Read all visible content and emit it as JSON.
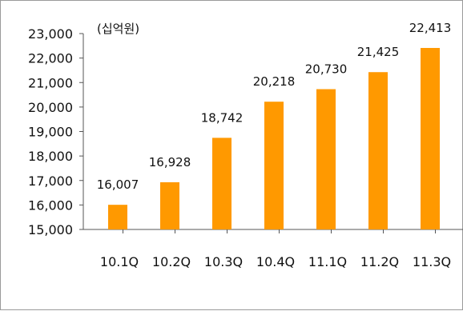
{
  "chart_data": {
    "type": "bar",
    "unit_label": "(십억원)",
    "categories": [
      "10.1Q",
      "10.2Q",
      "10.3Q",
      "10.4Q",
      "11.1Q",
      "11.2Q",
      "11.3Q"
    ],
    "values": [
      16007,
      16928,
      18742,
      20218,
      20730,
      21425,
      22413
    ],
    "value_labels": [
      "16,007",
      "16,928",
      "18,742",
      "20,218",
      "20,730",
      "21,425",
      "22,413"
    ],
    "y_ticks": [
      "15,000",
      "16,000",
      "17,000",
      "18,000",
      "19,000",
      "20,000",
      "21,000",
      "22,000",
      "23,000"
    ],
    "ylim": [
      15000,
      23000
    ],
    "bar_color": "#FF9900",
    "grid": false,
    "legend": "none"
  }
}
